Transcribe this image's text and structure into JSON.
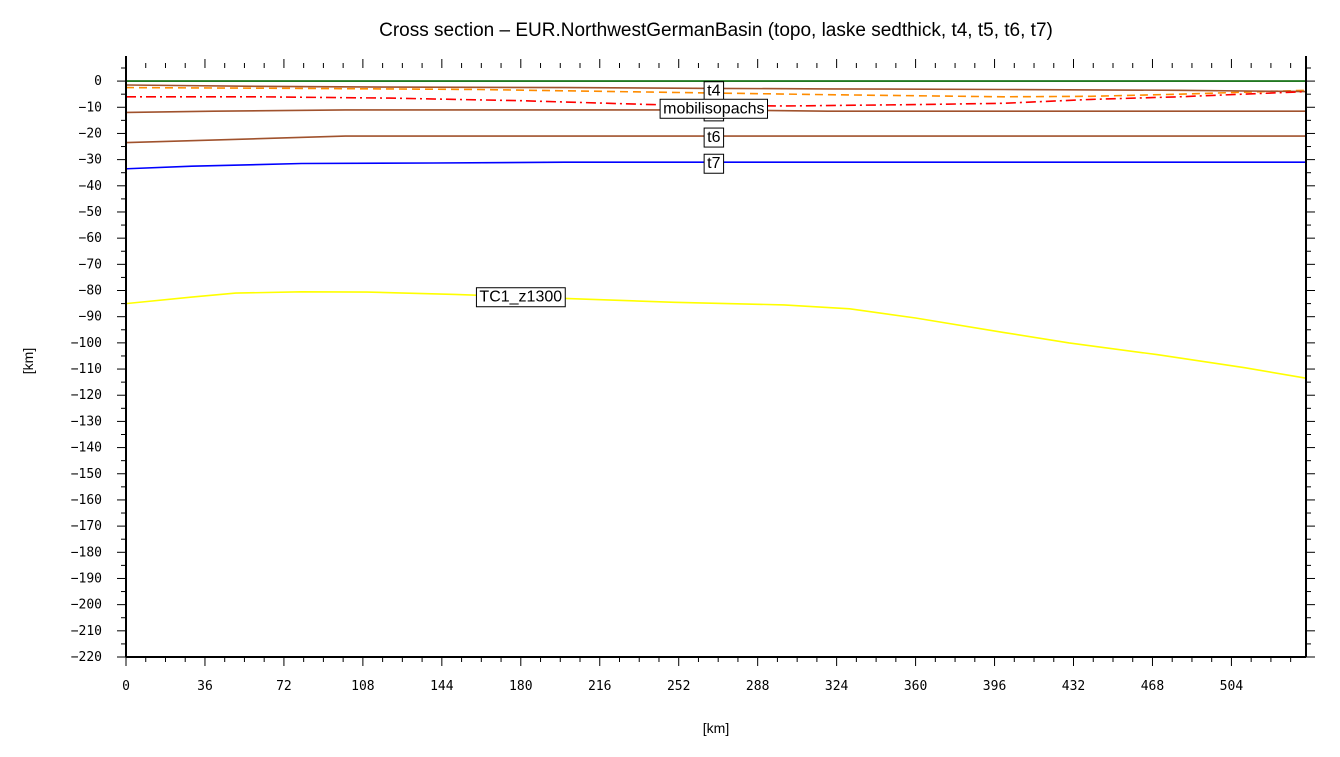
{
  "chart_data": {
    "type": "line",
    "title": "Cross section – EUR.NorthwestGermanBasin (topo, laske sedthick, t4, t5, t6, t7)",
    "xlabel": "[km]",
    "ylabel": "[km]",
    "xlim": [
      0,
      538
    ],
    "ylim": [
      -220,
      5
    ],
    "x_ticks": [
      0,
      36,
      72,
      108,
      144,
      180,
      216,
      252,
      288,
      324,
      360,
      396,
      432,
      468,
      504
    ],
    "y_ticks": [
      0,
      -10,
      -20,
      -30,
      -40,
      -50,
      -60,
      -70,
      -80,
      -90,
      -100,
      -110,
      -120,
      -130,
      -140,
      -150,
      -160,
      -170,
      -180,
      -190,
      -200,
      -210,
      -220
    ],
    "y_tick_labels": [
      "0",
      "−10",
      "−20",
      "−30",
      "−40",
      "−50",
      "−60",
      "−70",
      "−80",
      "−90",
      "−100",
      "−110",
      "−120",
      "−130",
      "−140",
      "−150",
      "−160",
      "−170",
      "−180",
      "−190",
      "−200",
      "−210",
      "−220"
    ],
    "grid": false,
    "series": [
      {
        "key": "topo",
        "color": "#006400",
        "dash": "solid",
        "x": [
          0,
          538
        ],
        "y": [
          0,
          0
        ]
      },
      {
        "key": "laske",
        "color": "#ff8c00",
        "dash": "dashed",
        "x": [
          0,
          80,
          160,
          240,
          320,
          400,
          440,
          480,
          538
        ],
        "y": [
          -2.5,
          -2.8,
          -3.2,
          -4.2,
          -5.2,
          -6,
          -5.8,
          -5,
          -3.5
        ]
      },
      {
        "key": "t4",
        "color": "#a0522d",
        "dash": "solid",
        "x": [
          0,
          60,
          120,
          200,
          268,
          320,
          400,
          480,
          538
        ],
        "y": [
          -1.5,
          -2,
          -2.3,
          -2.5,
          -2.8,
          -3,
          -3.2,
          -3.5,
          -4
        ]
      },
      {
        "key": "mobil",
        "name": "mobilisopachs",
        "color": "#ff0000",
        "dash": "dashdot",
        "x": [
          0,
          60,
          120,
          180,
          240,
          300,
          360,
          400,
          440,
          480,
          538
        ],
        "y": [
          -6,
          -6,
          -6.5,
          -7.5,
          -9,
          -9.5,
          -9,
          -8.5,
          -7,
          -6,
          -4
        ]
      },
      {
        "key": "t5",
        "name": "t5",
        "color": "#a0522d",
        "dash": "solid",
        "x": [
          0,
          40,
          100,
          200,
          268,
          320,
          400,
          500,
          538
        ],
        "y": [
          -12,
          -11.5,
          -11,
          -11,
          -11,
          -11.5,
          -11.5,
          -11.5,
          -11.5
        ]
      },
      {
        "key": "t6",
        "name": "t6",
        "color": "#a0522d",
        "dash": "solid",
        "x": [
          0,
          20,
          60,
          100,
          200,
          268,
          320,
          400,
          538
        ],
        "y": [
          -23.5,
          -23,
          -22,
          -21,
          -21,
          -21,
          -21,
          -21,
          -21
        ]
      },
      {
        "key": "t7",
        "name": "t7",
        "color": "#0000ff",
        "dash": "solid",
        "x": [
          0,
          30,
          80,
          140,
          200,
          268,
          340,
          400,
          538
        ],
        "y": [
          -33.5,
          -32.5,
          -31.5,
          -31.3,
          -31,
          -31,
          -31,
          -31,
          -31
        ]
      },
      {
        "key": "tc1",
        "name": "TC1_z1300",
        "color": "#ffff00",
        "dash": "solid",
        "x": [
          0,
          30,
          50,
          80,
          110,
          150,
          200,
          250,
          300,
          330,
          360,
          400,
          430,
          470,
          510,
          538
        ],
        "y": [
          -85,
          -82.5,
          -81,
          -80.5,
          -80.6,
          -81.5,
          -83,
          -84.5,
          -85.5,
          -87,
          -90.5,
          -96,
          -100,
          -104.5,
          -109.5,
          -113.5
        ]
      }
    ],
    "annotations": [
      {
        "text": "t4",
        "x": 268,
        "y": -3.3
      },
      {
        "text": "t5",
        "x": 268,
        "y": -11
      },
      {
        "text": "mobilisopachs",
        "x": 268,
        "y": -10
      },
      {
        "text": "t6",
        "x": 268,
        "y": -21
      },
      {
        "text": "t7",
        "x": 268,
        "y": -31
      },
      {
        "text": "TC1_z1300",
        "x": 180,
        "y": -82
      }
    ]
  }
}
